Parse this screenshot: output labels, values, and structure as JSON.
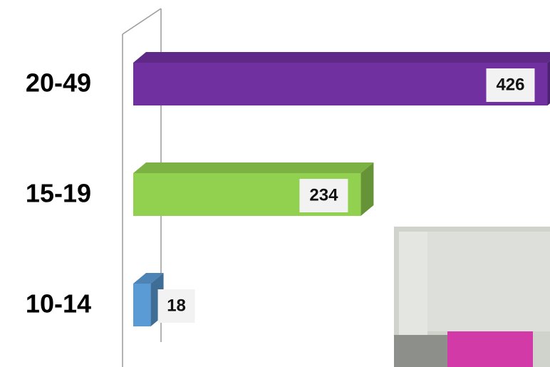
{
  "chart_data": {
    "type": "bar3d-horizontal",
    "categories": [
      "20-49",
      "15-19",
      "10-14"
    ],
    "values": [
      426,
      234,
      18
    ],
    "colors": [
      "#7030a0",
      "#92d050",
      "#5b9bd5"
    ]
  }
}
